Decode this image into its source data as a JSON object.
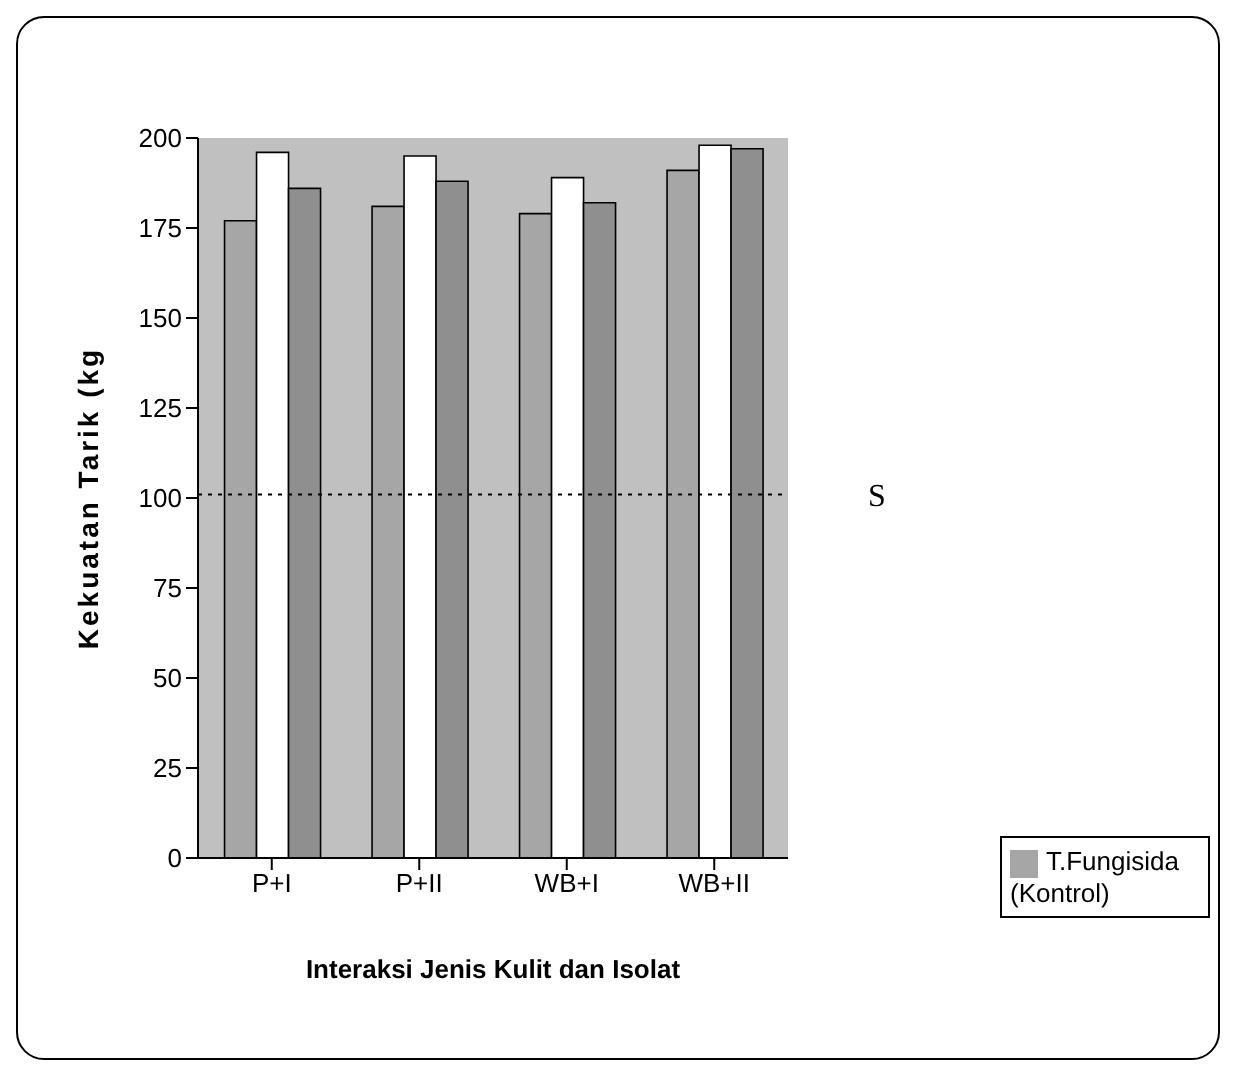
{
  "chart_data": {
    "type": "bar",
    "xlabel": "Interaksi Jenis Kulit dan Isolat",
    "ylabel": "Kekuatan Tarik (kg",
    "categories": [
      "P+I",
      "P+II",
      "WB+I",
      "WB+II"
    ],
    "series": [
      {
        "name": "T.Fungisida (Kontrol)",
        "color": "#a6a6a6",
        "values": [
          177,
          181,
          179,
          191
        ]
      },
      {
        "color": "#ffffff",
        "values": [
          196,
          195,
          189,
          198
        ]
      },
      {
        "color": "#8f8f8f",
        "values": [
          186,
          188,
          182,
          197
        ]
      }
    ],
    "ylim": [
      0,
      200
    ],
    "yticks": [
      0,
      25,
      50,
      75,
      100,
      125,
      150,
      175,
      200
    ],
    "ref_lines": [
      {
        "axis": "y",
        "value": 101,
        "label": "S",
        "line_style": "dotted",
        "color": "#000000"
      }
    ],
    "legend": "bottom right",
    "grid": false
  }
}
